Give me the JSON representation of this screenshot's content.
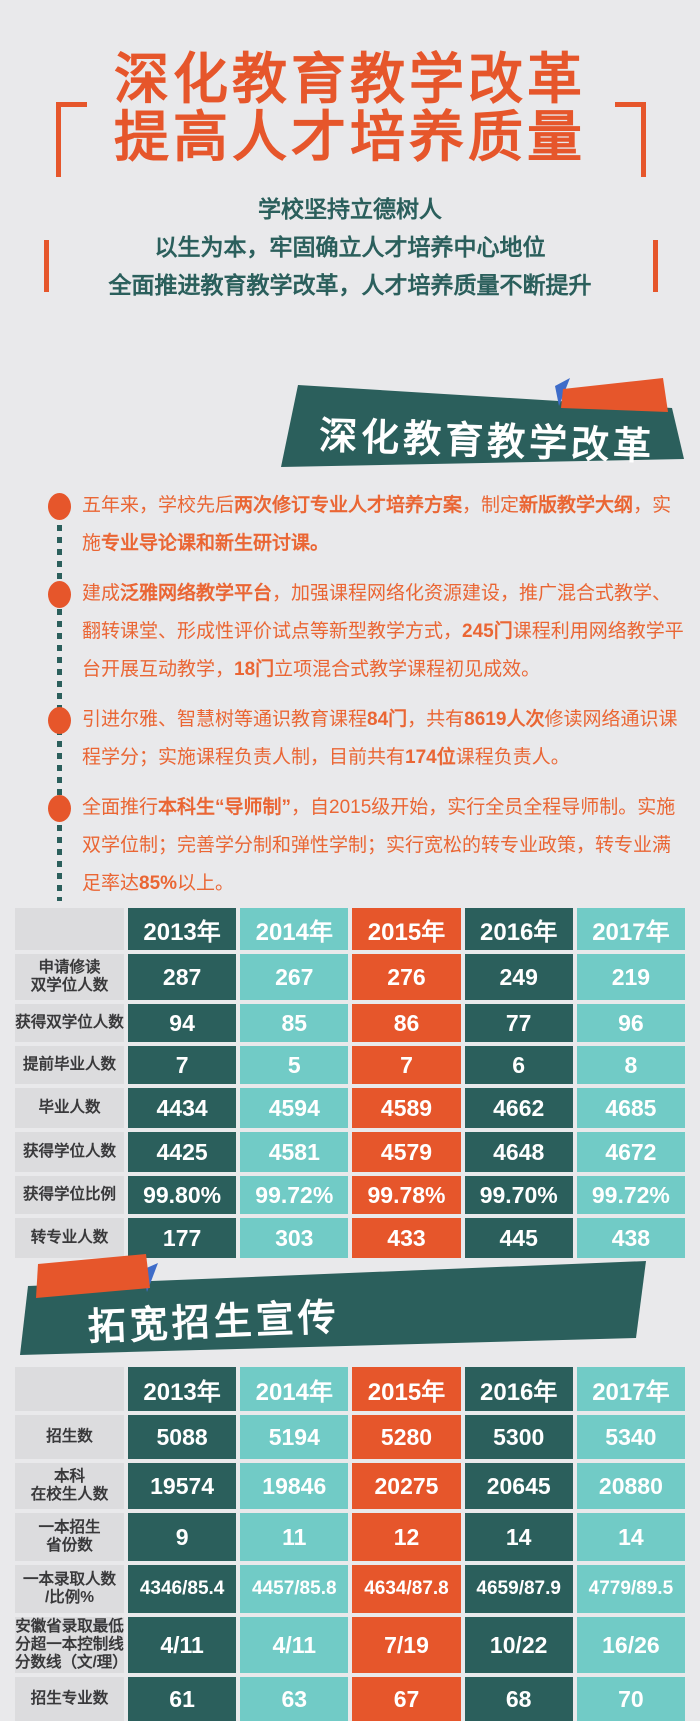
{
  "colors": {
    "page_bg": "#e9e9eb",
    "orange": "#e6562b",
    "text_orange": "#ea6634",
    "teal": "#2b5f5c",
    "light_teal": "#71cbc6",
    "label_bg": "#dcdcde",
    "label_text": "#39393b",
    "blue_accent": "#3e6cc9",
    "cell_text": "#ffffff"
  },
  "table_column_colors": [
    "#2b5f5c",
    "#71cbc6",
    "#e6562b",
    "#2b5f5c",
    "#71cbc6"
  ],
  "header": {
    "title_line1": "深化教育教学改革",
    "title_line2": "提高人才培养质量",
    "subtitles": [
      "学校坚持立德树人",
      "以生为本，牢固确立人才培养中心地位",
      "全面推进教育教学改革，人才培养质量不断提升"
    ]
  },
  "section_reform": {
    "banner_label": "深化教育教学改革",
    "bullets": [
      {
        "segments": [
          {
            "text": "五年来，学校先后",
            "bold": false
          },
          {
            "text": "两次修订专业人才培养方案",
            "bold": true
          },
          {
            "text": "，制定",
            "bold": false
          },
          {
            "text": "新版教学大纲",
            "bold": true
          },
          {
            "text": "，实施",
            "bold": false
          },
          {
            "text": "专业导论课和新生研讨课。",
            "bold": true
          }
        ]
      },
      {
        "segments": [
          {
            "text": "建成",
            "bold": false
          },
          {
            "text": "泛雅网络教学平台",
            "bold": true
          },
          {
            "text": "，加强课程网络化资源建设，推广混合式教学、翻转课堂、形成性评价试点等新型教学方式，",
            "bold": false
          },
          {
            "text": "245门",
            "bold": true
          },
          {
            "text": "课程利用网络教学平台开展互动教学，",
            "bold": false
          },
          {
            "text": "18门",
            "bold": true
          },
          {
            "text": "立项混合式教学课程初见成效。",
            "bold": false
          }
        ]
      },
      {
        "segments": [
          {
            "text": "引进尔雅、智慧树等通识教育课程",
            "bold": false
          },
          {
            "text": "84门",
            "bold": true
          },
          {
            "text": "，共有",
            "bold": false
          },
          {
            "text": "8619人次",
            "bold": true
          },
          {
            "text": "修读网络通识课程学分；实施课程负责人制，目前共有",
            "bold": false
          },
          {
            "text": "174位",
            "bold": true
          },
          {
            "text": "课程负责人。",
            "bold": false
          }
        ]
      },
      {
        "segments": [
          {
            "text": "全面推行",
            "bold": false
          },
          {
            "text": "本科生“导师制”",
            "bold": true
          },
          {
            "text": "，自2015级开始，实行全员全程导师制。实施双学位制；完善学分制和弹性学制；实行宽松的转专业政策，转专业满足率达",
            "bold": false
          },
          {
            "text": "85%",
            "bold": true
          },
          {
            "text": "以上。",
            "bold": false
          }
        ]
      }
    ],
    "table": {
      "year_headers": [
        "2013年",
        "2014年",
        "2015年",
        "2016年",
        "2017年"
      ],
      "rows": [
        {
          "label": "申请修读\n双学位人数",
          "values": [
            "287",
            "267",
            "276",
            "249",
            "219"
          ]
        },
        {
          "label": "获得双学位人数",
          "values": [
            "94",
            "85",
            "86",
            "77",
            "96"
          ]
        },
        {
          "label": "提前毕业人数",
          "values": [
            "7",
            "5",
            "7",
            "6",
            "8"
          ]
        },
        {
          "label": "毕业人数",
          "values": [
            "4434",
            "4594",
            "4589",
            "4662",
            "4685"
          ]
        },
        {
          "label": "获得学位人数",
          "values": [
            "4425",
            "4581",
            "4579",
            "4648",
            "4672"
          ]
        },
        {
          "label": "获得学位比例",
          "values": [
            "99.80%",
            "99.72%",
            "99.78%",
            "99.70%",
            "99.72%"
          ]
        },
        {
          "label": "转专业人数",
          "values": [
            "177",
            "303",
            "433",
            "445",
            "438"
          ]
        }
      ]
    }
  },
  "section_enroll": {
    "banner_label": "拓宽招生宣传",
    "table": {
      "year_headers": [
        "2013年",
        "2014年",
        "2015年",
        "2016年",
        "2017年"
      ],
      "rows": [
        {
          "label": "招生数",
          "values": [
            "5088",
            "5194",
            "5280",
            "5300",
            "5340"
          ]
        },
        {
          "label": "本科\n在校生人数",
          "values": [
            "19574",
            "19846",
            "20275",
            "20645",
            "20880"
          ]
        },
        {
          "label": "一本招生\n省份数",
          "values": [
            "9",
            "11",
            "12",
            "14",
            "14"
          ]
        },
        {
          "label": "一本录取人数\n/比例%",
          "values": [
            "4346/85.4",
            "4457/85.8",
            "4634/87.8",
            "4659/87.9",
            "4779/89.5"
          ]
        },
        {
          "label": "安徽省录取最低\n分超一本控制线\n分数线（文/理）",
          "values": [
            "4/11",
            "4/11",
            "7/19",
            "10/22",
            "16/26"
          ]
        },
        {
          "label": "招生专业数",
          "values": [
            "61",
            "63",
            "67",
            "68",
            "70"
          ]
        }
      ]
    }
  }
}
